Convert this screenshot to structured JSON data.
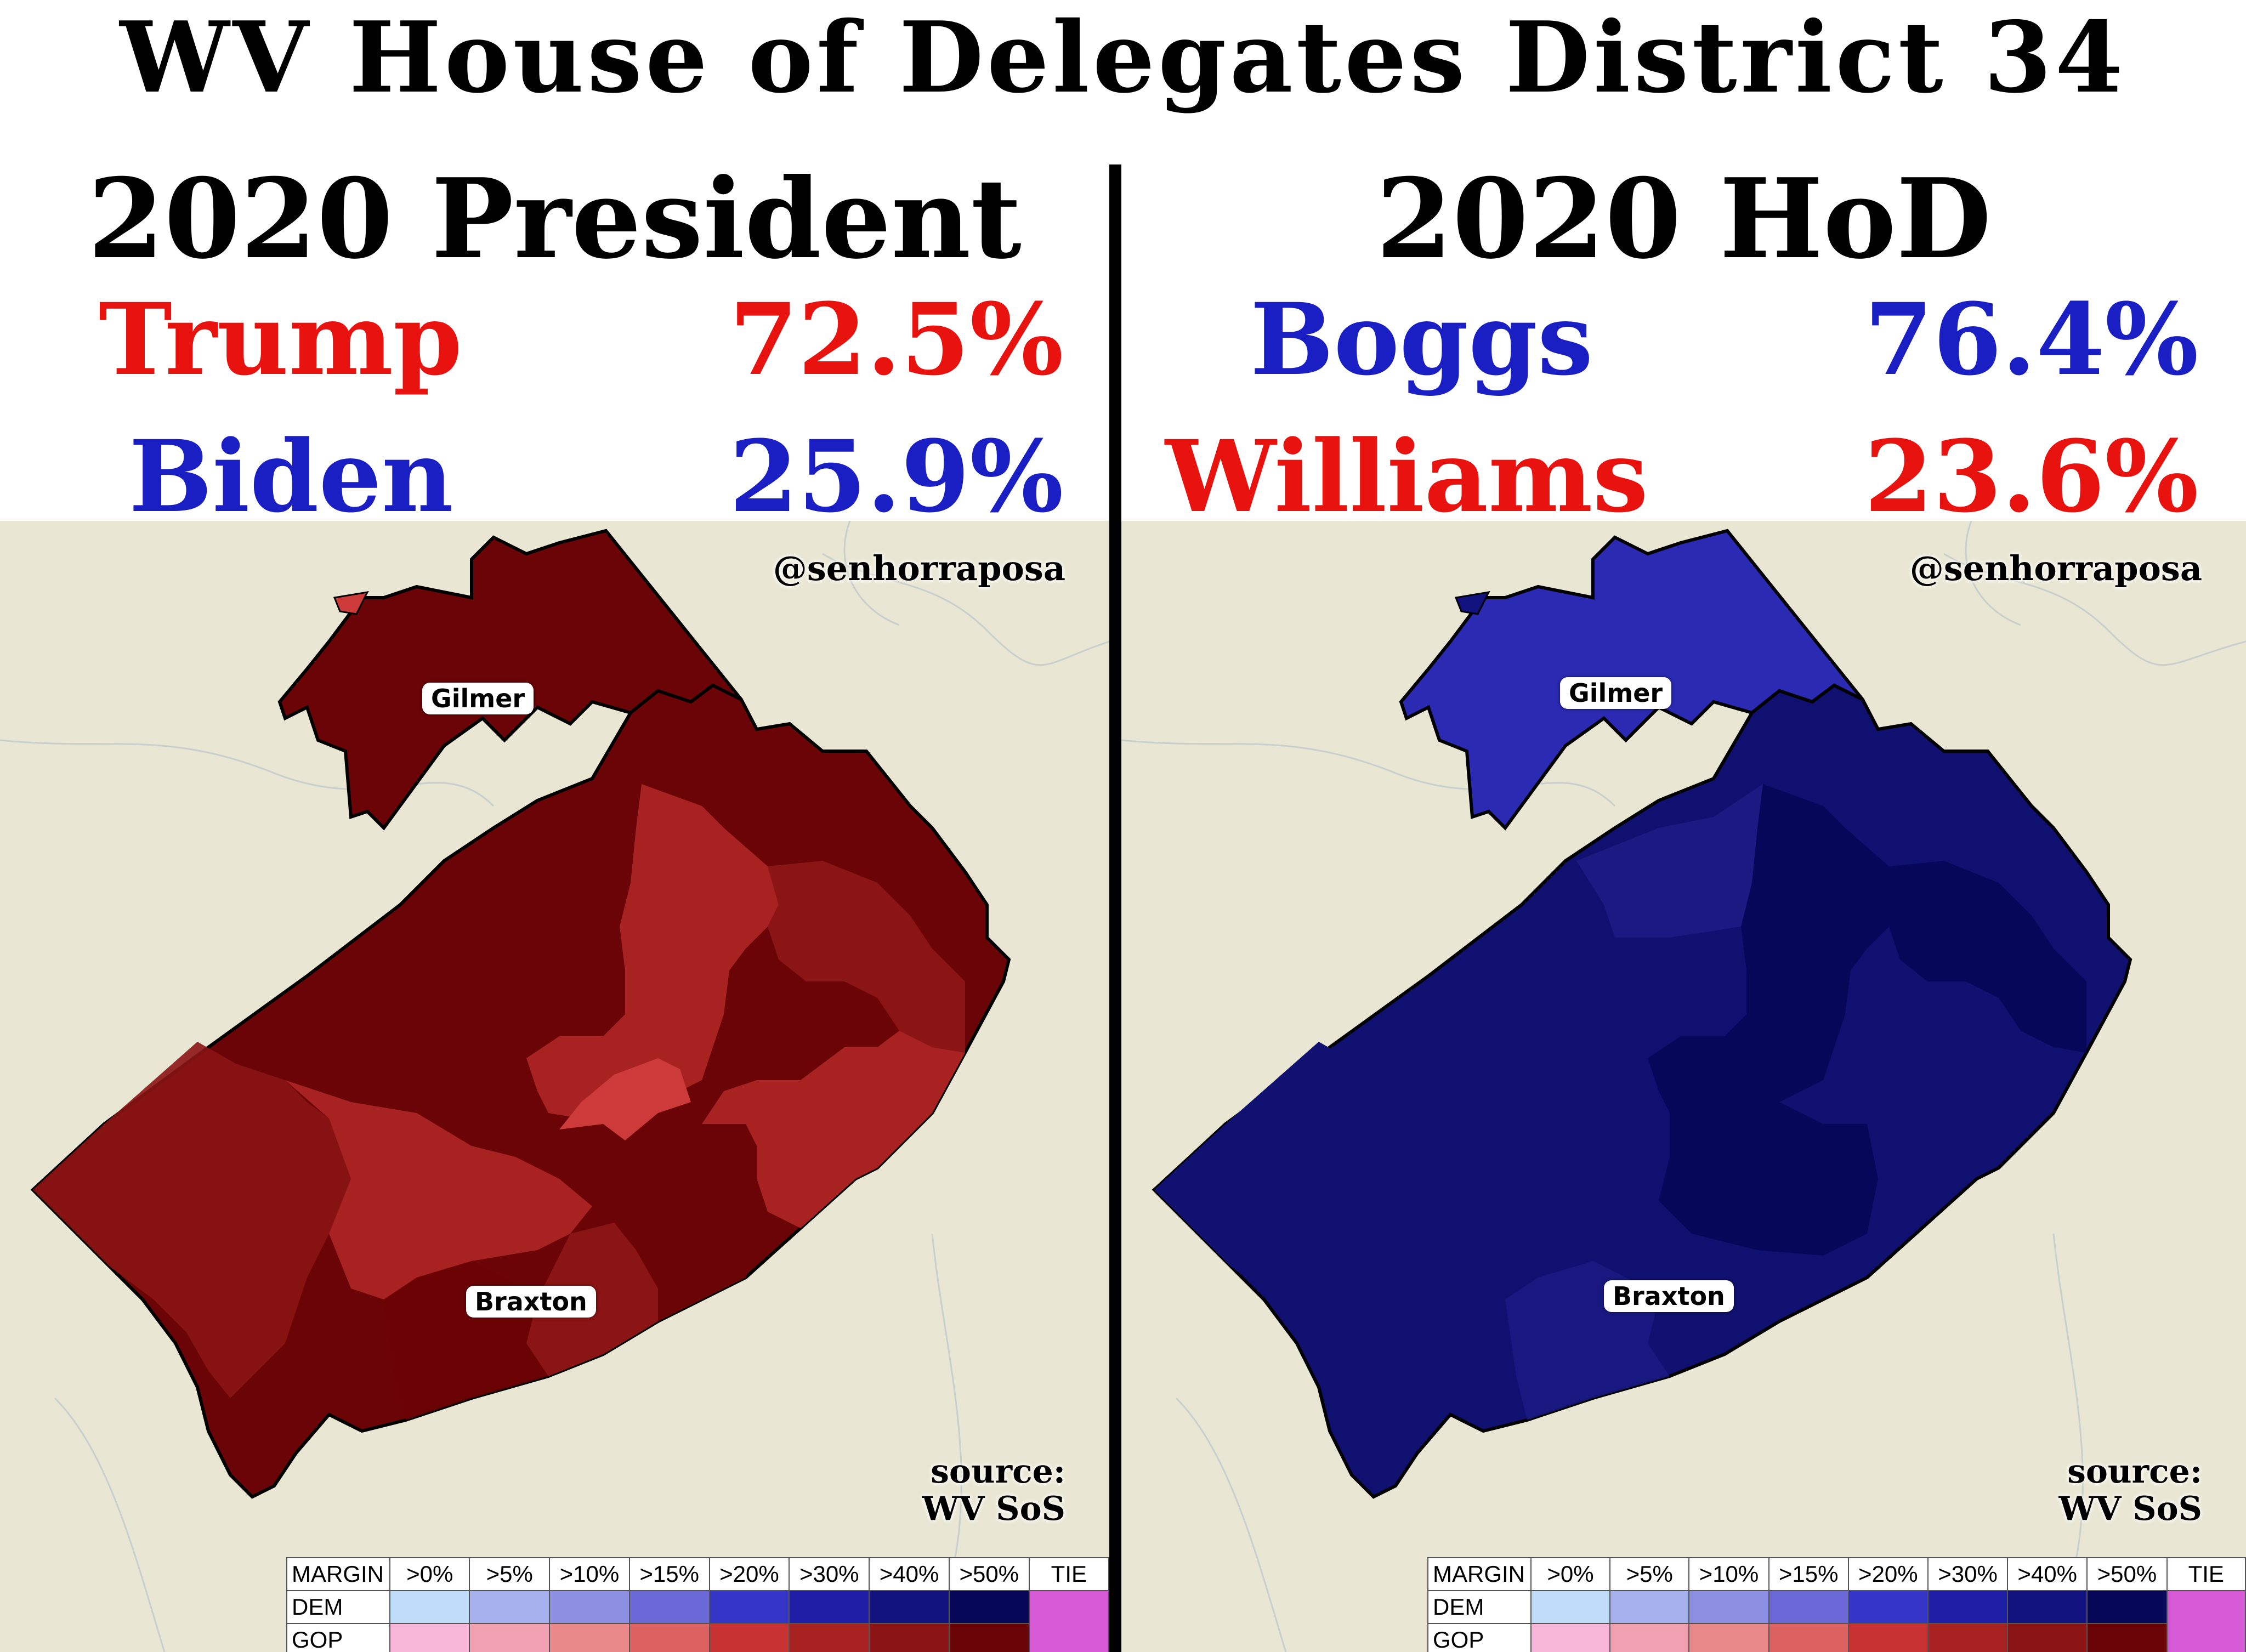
{
  "title": "WV House of Delegates District 34",
  "left": {
    "heading": "2020 President",
    "rows": [
      {
        "name": "Trump",
        "pct": "72.5%",
        "color": "#e8120e"
      },
      {
        "name": "Biden",
        "pct": "25.9%",
        "color": "#1a1fc4"
      }
    ],
    "handle": "@senhorraposa",
    "source_1": "source:",
    "source_2": "WV SoS",
    "labels": {
      "county_a": "Gilmer",
      "county_b": "Braxton"
    },
    "palette": {
      "gilmer": "#6b0406",
      "braxton_base": "#6b0406",
      "mid": "#8b1414",
      "light": "#a82222",
      "lightest": "#cc3a3a"
    }
  },
  "right": {
    "heading": "2020 HoD",
    "rows": [
      {
        "name": "Boggs",
        "pct": "76.4%",
        "color": "#1a1fc4"
      },
      {
        "name": "Williams",
        "pct": "23.6%",
        "color": "#e8120e"
      }
    ],
    "handle": "@senhorraposa",
    "source_1": "source:",
    "source_2": "WV SoS",
    "labels": {
      "county_a": "Gilmer",
      "county_b": "Braxton"
    },
    "palette": {
      "gilmer": "#2a2ab2",
      "braxton_base": "#07075a",
      "mid": "#101070",
      "light": "#1a1a82",
      "lightest": "#1c1c9a"
    }
  },
  "legend": {
    "header": [
      "MARGIN",
      ">0%",
      ">5%",
      ">10%",
      ">15%",
      ">20%",
      ">30%",
      ">40%",
      ">50%",
      "TIE"
    ],
    "dem_label": "DEM",
    "gop_label": "GOP",
    "dem_colors": [
      "#bfdcf8",
      "#a6b2ee",
      "#8c8fe2",
      "#6a68d6",
      "#3535c8",
      "#1e1ea6",
      "#12127e",
      "#07075a"
    ],
    "gop_colors": [
      "#f8b6d8",
      "#f0a0b0",
      "#e88888",
      "#dc6262",
      "#c83232",
      "#a82222",
      "#8b1414",
      "#6b0406"
    ],
    "tie_color": "#d65ad6"
  }
}
